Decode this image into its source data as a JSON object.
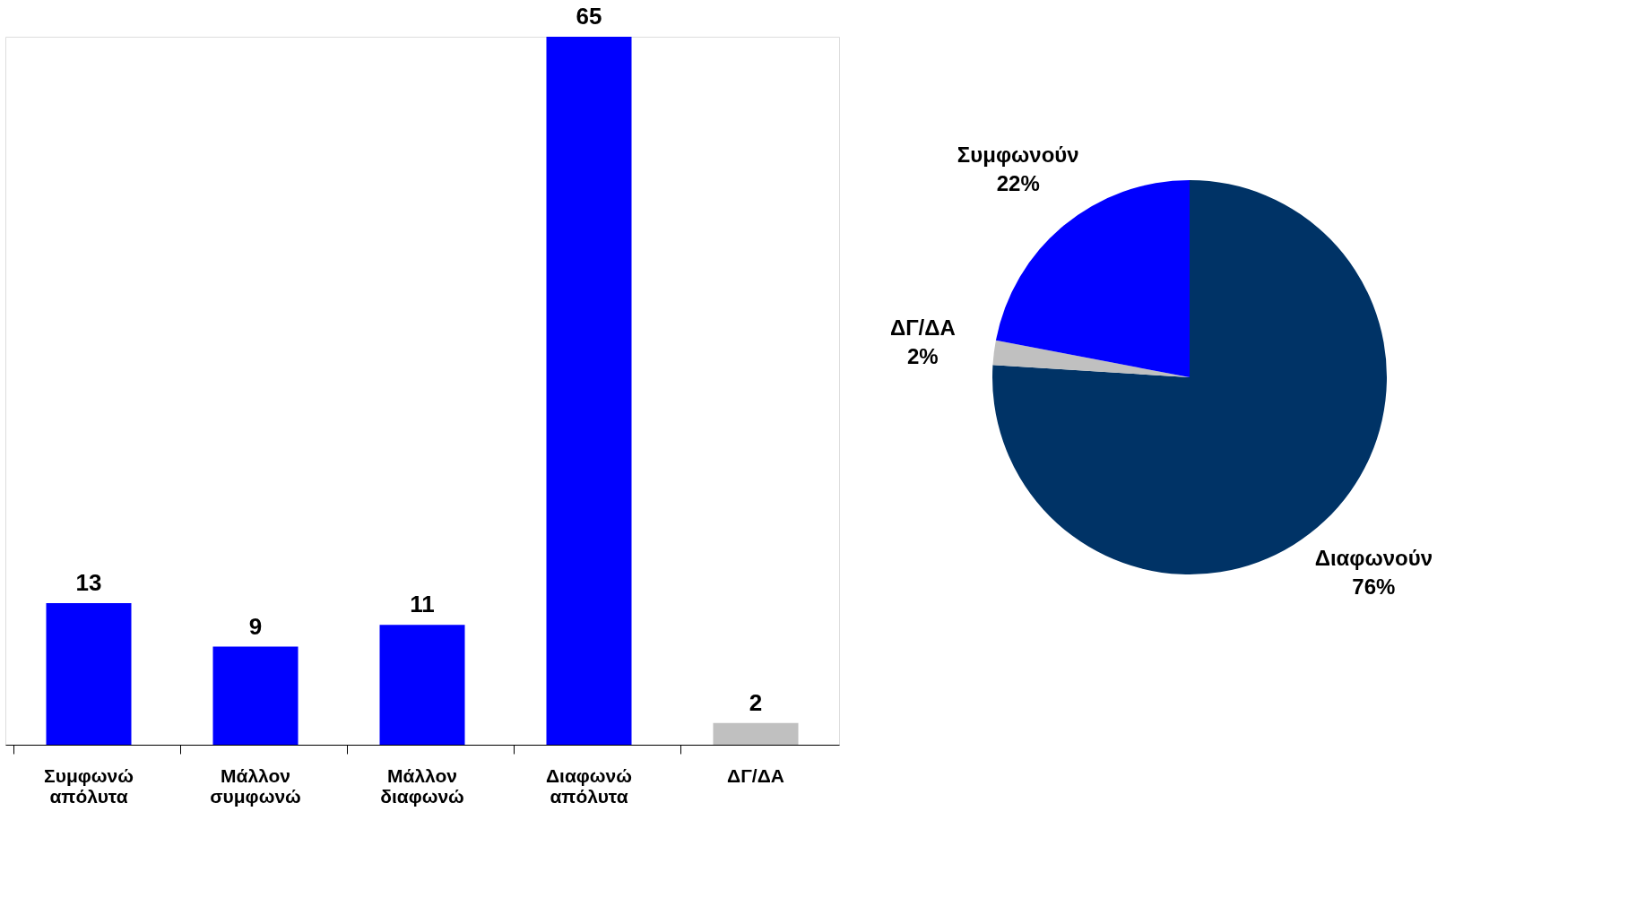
{
  "chart_data": [
    {
      "type": "bar",
      "categories": [
        "Συμφωνώ απόλυτα",
        "Μάλλον συμφωνώ",
        "Μάλλον διαφωνώ",
        "Διαφωνώ απόλυτα",
        "ΔΓ/ΔΑ"
      ],
      "values": [
        13,
        9,
        11,
        65,
        2
      ],
      "colors": [
        "#0000ff",
        "#0000ff",
        "#0000ff",
        "#0000ff",
        "#c0c0c0"
      ],
      "data_labels": true,
      "grid": false
    },
    {
      "type": "pie",
      "categories": [
        "Διαφωνούν",
        "ΔΓ/ΔΑ",
        "Συμφωνούν"
      ],
      "values": [
        76,
        2,
        22
      ],
      "colors": [
        "#003366",
        "#c0c0c0",
        "#0000ff"
      ],
      "value_labels": [
        "76%",
        "2%",
        "22%"
      ]
    }
  ]
}
